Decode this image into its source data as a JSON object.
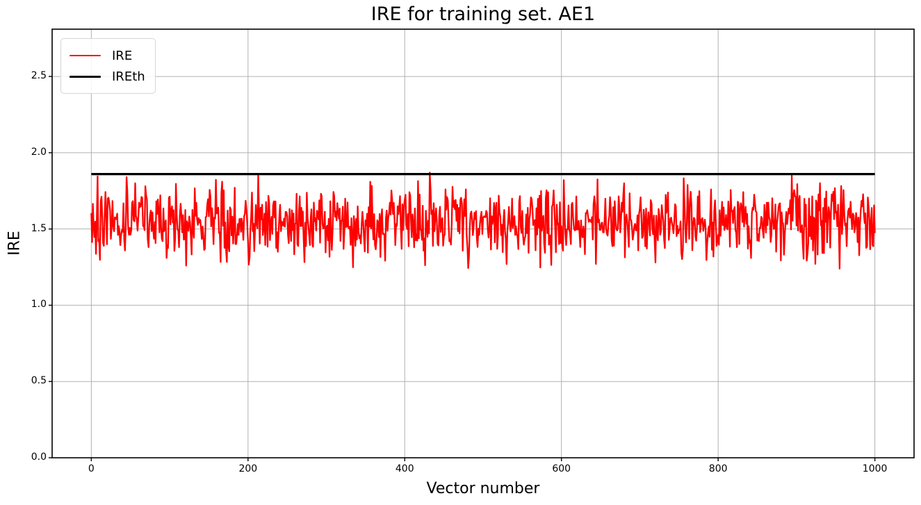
{
  "chart_data": {
    "type": "line",
    "title": "IRE for training set. AE1",
    "xlabel": "Vector number",
    "ylabel": "IRE",
    "xlim": [
      -50,
      1050
    ],
    "ylim": [
      0,
      2.81
    ],
    "x_ticks": [
      0,
      200,
      400,
      600,
      800,
      1000
    ],
    "y_ticks": [
      0.0,
      0.5,
      1.0,
      1.5,
      2.0,
      2.5
    ],
    "y_tick_labels": [
      "0.0",
      "0.5",
      "1.0",
      "1.5",
      "2.0",
      "2.5"
    ],
    "grid": true,
    "grid_color": "#b0b0b0",
    "spine_color": "#000000",
    "background_color": "#ffffff",
    "legend": {
      "position": "upper-left",
      "entries": [
        {
          "label": "IRE",
          "color": "#ff0000"
        },
        {
          "label": "IREth",
          "color": "#000000"
        }
      ]
    },
    "series": [
      {
        "name": "IRE",
        "kind": "noisy-line",
        "color": "#ff0000",
        "line_width": 2.3,
        "x_start": 0,
        "x_end": 1000,
        "n_points": 1001,
        "noise": {
          "mean": 1.55,
          "std": 0.115,
          "min": 1.24,
          "max": 1.85,
          "seed": 20
        },
        "peaks": [
          {
            "x": 45,
            "y": 1.84
          },
          {
            "x": 432,
            "y": 1.87
          },
          {
            "x": 680,
            "y": 1.8
          }
        ],
        "dips": [
          {
            "x": 121,
            "y": 1.26
          },
          {
            "x": 530,
            "y": 1.27
          },
          {
            "x": 955,
            "y": 1.24
          }
        ]
      },
      {
        "name": "IREth",
        "kind": "hline",
        "color": "#000000",
        "line_width": 3.2,
        "value": 1.86,
        "x_start": 0,
        "x_end": 1000
      }
    ]
  }
}
